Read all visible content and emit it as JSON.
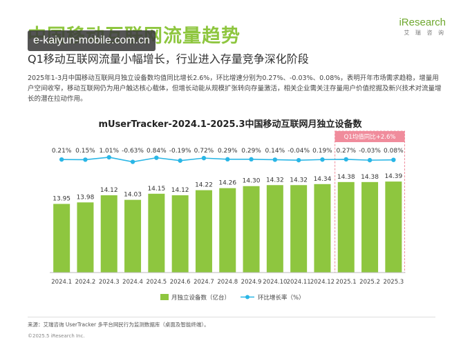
{
  "slide": {
    "title": "中国移动互联网流量趋势",
    "subtitle": "Q1移动互联网流量小幅增长，行业进入存量竞争深化阶段",
    "summary": "2025年1-3月中国移动互联网月独立设备数均值同比增长2.6%，环比增速分别为0.27%、-0.03%、0.08%，表明开年市场需求趋稳，增量用户空间收窄，移动互联网仍为用户触达核心载体，但增长动能从规模扩张转向存量激活，相关企业需关注存量用户价值挖掘及新兴技术对流量增长的潜在拉动作用。",
    "watermark": "e-kaiyun-mobile.com.cn",
    "logo": "iResearch",
    "logo_sub": "艾 瑞 咨 询",
    "source": "来源：艾瑞咨询 UserTracker 多平台网民行为监测数据库（桌面及智能终端）。",
    "copyright": "©2025.5 iResearch Inc."
  },
  "chart_data": {
    "type": "bar",
    "title": "mUserTracker-2024.1-2025.3中国移动互联网月独立设备数",
    "categories": [
      "2024.1",
      "2024.2",
      "2024.3",
      "2024.4",
      "2024.5",
      "2024.6",
      "2024.7",
      "2024.8",
      "2024.9",
      "2024.10",
      "2024.11",
      "2024.12",
      "2025.1",
      "2025.2",
      "2025.3"
    ],
    "series": [
      {
        "name": "月独立设备数（亿台）",
        "type": "bar",
        "color": "#8ec63f",
        "values": [
          13.95,
          13.98,
          14.12,
          14.03,
          14.15,
          14.12,
          14.22,
          14.26,
          14.3,
          14.32,
          14.32,
          14.34,
          14.38,
          14.38,
          14.39
        ]
      },
      {
        "name": "环比增长率（%）",
        "type": "line",
        "color": "#29b6e6",
        "values": [
          0.21,
          0.15,
          1.01,
          -0.63,
          0.84,
          -0.19,
          0.72,
          0.29,
          0.29,
          0.14,
          -0.04,
          0.19,
          0.27,
          -0.03,
          0.08
        ]
      }
    ],
    "value_labels": [
      "13.95",
      "13.98",
      "14.12",
      "14.03",
      "14.15",
      "14.12",
      "14.22",
      "14.26",
      "14.30",
      "14.32",
      "14.32",
      "14.34",
      "14.38",
      "14.38",
      "14.39"
    ],
    "rate_labels": [
      "0.21%",
      "0.15%",
      "1.01%",
      "-0.63%",
      "0.84%",
      "-0.19%",
      "0.72%",
      "0.29%",
      "0.29%",
      "0.14%",
      "-0.04%",
      "0.19%",
      "0.27%",
      "-0.03%",
      "0.08%"
    ],
    "annotation": "Q1均值同比+2.6%",
    "highlight_range": [
      "2025.1",
      "2025.3"
    ],
    "legend_position": "bottom",
    "grid": false,
    "colors": {
      "bar": "#8ec63f",
      "line": "#29b6e6",
      "annotation": "#f08c9c"
    }
  }
}
